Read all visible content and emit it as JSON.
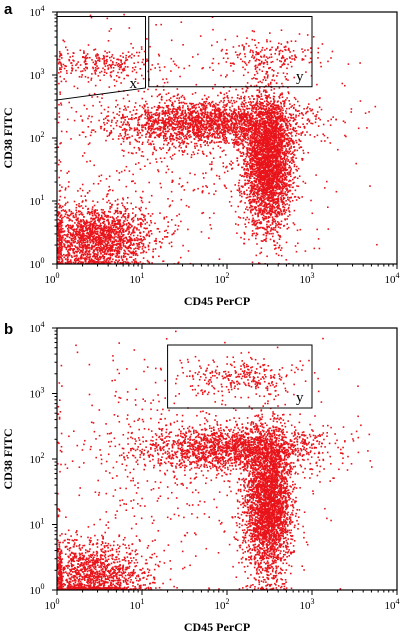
{
  "chart_data": [
    {
      "type": "scatter",
      "panel": "a",
      "xlabel": "CD45 PerCP",
      "ylabel": "CD38 FITC",
      "xscale": "log",
      "yscale": "log",
      "xlim": [
        1,
        10000
      ],
      "ylim": [
        1,
        10000
      ],
      "color": "#e8141b",
      "xtick_labels": [
        [
          "10",
          "0"
        ],
        [
          "10",
          "1"
        ],
        [
          "10",
          "2"
        ],
        [
          "10",
          "3"
        ],
        [
          "10",
          "4"
        ]
      ],
      "ytick_labels": [
        [
          "10",
          "0"
        ],
        [
          "10",
          "1"
        ],
        [
          "10",
          "2"
        ],
        [
          "10",
          "3"
        ],
        [
          "10",
          "4"
        ]
      ],
      "gates": [
        {
          "name": "x",
          "x": [
            1,
            11
          ],
          "y": [
            500,
            8500
          ]
        },
        {
          "name": "y",
          "x": [
            12,
            1000
          ],
          "y": [
            650,
            8500
          ]
        }
      ],
      "populations": [
        {
          "description": "low CD45 / low CD38 cluster",
          "x_center": 3,
          "y_center": 2.5,
          "count": 1900
        },
        {
          "description": "CD45 bright lymphocytes",
          "x_center": 300,
          "y_center": 40,
          "count": 3200
        },
        {
          "description": "CD38 intermediate band",
          "x_center": 60,
          "y_center": 180,
          "count": 2100
        },
        {
          "description": "gate x events",
          "x_center": 3,
          "y_center": 1500,
          "count": 260
        },
        {
          "description": "gate y events",
          "x_center": 300,
          "y_center": 2000,
          "count": 200
        },
        {
          "description": "background",
          "x_center": 30,
          "y_center": 100,
          "count": 600
        }
      ]
    },
    {
      "type": "scatter",
      "panel": "b",
      "xlabel": "CD45 PerCP",
      "ylabel": "CD38 FITC",
      "xscale": "log",
      "yscale": "log",
      "xlim": [
        1,
        10000
      ],
      "ylim": [
        1,
        10000
      ],
      "color": "#e8141b",
      "xtick_labels": [
        [
          "10",
          "0"
        ],
        [
          "10",
          "1"
        ],
        [
          "10",
          "2"
        ],
        [
          "10",
          "3"
        ],
        [
          "10",
          "4"
        ]
      ],
      "ytick_labels": [
        [
          "10",
          "0"
        ],
        [
          "10",
          "1"
        ],
        [
          "10",
          "2"
        ],
        [
          "10",
          "3"
        ],
        [
          "10",
          "4"
        ]
      ],
      "gates": [
        {
          "name": "y",
          "x": [
            20,
            1000
          ],
          "y": [
            600,
            5500
          ]
        }
      ],
      "populations": [
        {
          "description": "low CD45 / low CD38 cluster",
          "x_center": 2.5,
          "y_center": 1.6,
          "count": 1500
        },
        {
          "description": "CD45 bright lymphocytes",
          "x_center": 300,
          "y_center": 20,
          "count": 3000
        },
        {
          "description": "CD38 intermediate band",
          "x_center": 120,
          "y_center": 150,
          "count": 1800
        },
        {
          "description": "gate y events",
          "x_center": 150,
          "y_center": 1800,
          "count": 260
        },
        {
          "description": "background",
          "x_center": 30,
          "y_center": 100,
          "count": 500
        }
      ]
    }
  ]
}
